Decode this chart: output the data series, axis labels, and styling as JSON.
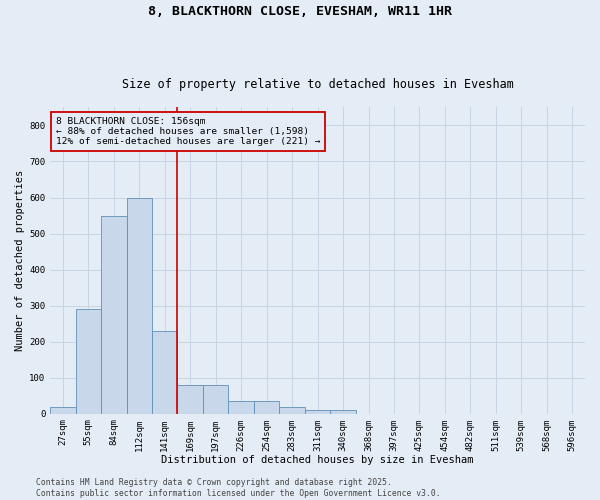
{
  "title": "8, BLACKTHORN CLOSE, EVESHAM, WR11 1HR",
  "subtitle": "Size of property relative to detached houses in Evesham",
  "xlabel": "Distribution of detached houses by size in Evesham",
  "ylabel": "Number of detached properties",
  "categories": [
    "27sqm",
    "55sqm",
    "84sqm",
    "112sqm",
    "141sqm",
    "169sqm",
    "197sqm",
    "226sqm",
    "254sqm",
    "283sqm",
    "311sqm",
    "340sqm",
    "368sqm",
    "397sqm",
    "425sqm",
    "454sqm",
    "482sqm",
    "511sqm",
    "539sqm",
    "568sqm",
    "596sqm"
  ],
  "bar_values": [
    20,
    290,
    550,
    600,
    230,
    80,
    80,
    35,
    35,
    20,
    10,
    10,
    0,
    0,
    0,
    0,
    0,
    0,
    0,
    0,
    0
  ],
  "bar_color": "#c8d8ea",
  "bar_edgecolor": "#6090b8",
  "grid_color": "#c8d4e4",
  "background_color": "#e4ecf5",
  "vline_x": 4.5,
  "vline_color": "#cc0000",
  "annotation_text": "8 BLACKTHORN CLOSE: 156sqm\n← 88% of detached houses are smaller (1,598)\n12% of semi-detached houses are larger (221) →",
  "annotation_box_color": "#cc0000",
  "ylim": [
    0,
    850
  ],
  "yticks": [
    0,
    100,
    200,
    300,
    400,
    500,
    600,
    700,
    800
  ],
  "footer_text": "Contains HM Land Registry data © Crown copyright and database right 2025.\nContains public sector information licensed under the Open Government Licence v3.0.",
  "title_fontsize": 9.5,
  "subtitle_fontsize": 8.5,
  "axis_label_fontsize": 7.5,
  "tick_fontsize": 6.5,
  "annotation_fontsize": 6.8,
  "footer_fontsize": 5.8,
  "figsize": [
    6.0,
    5.0
  ],
  "dpi": 100
}
